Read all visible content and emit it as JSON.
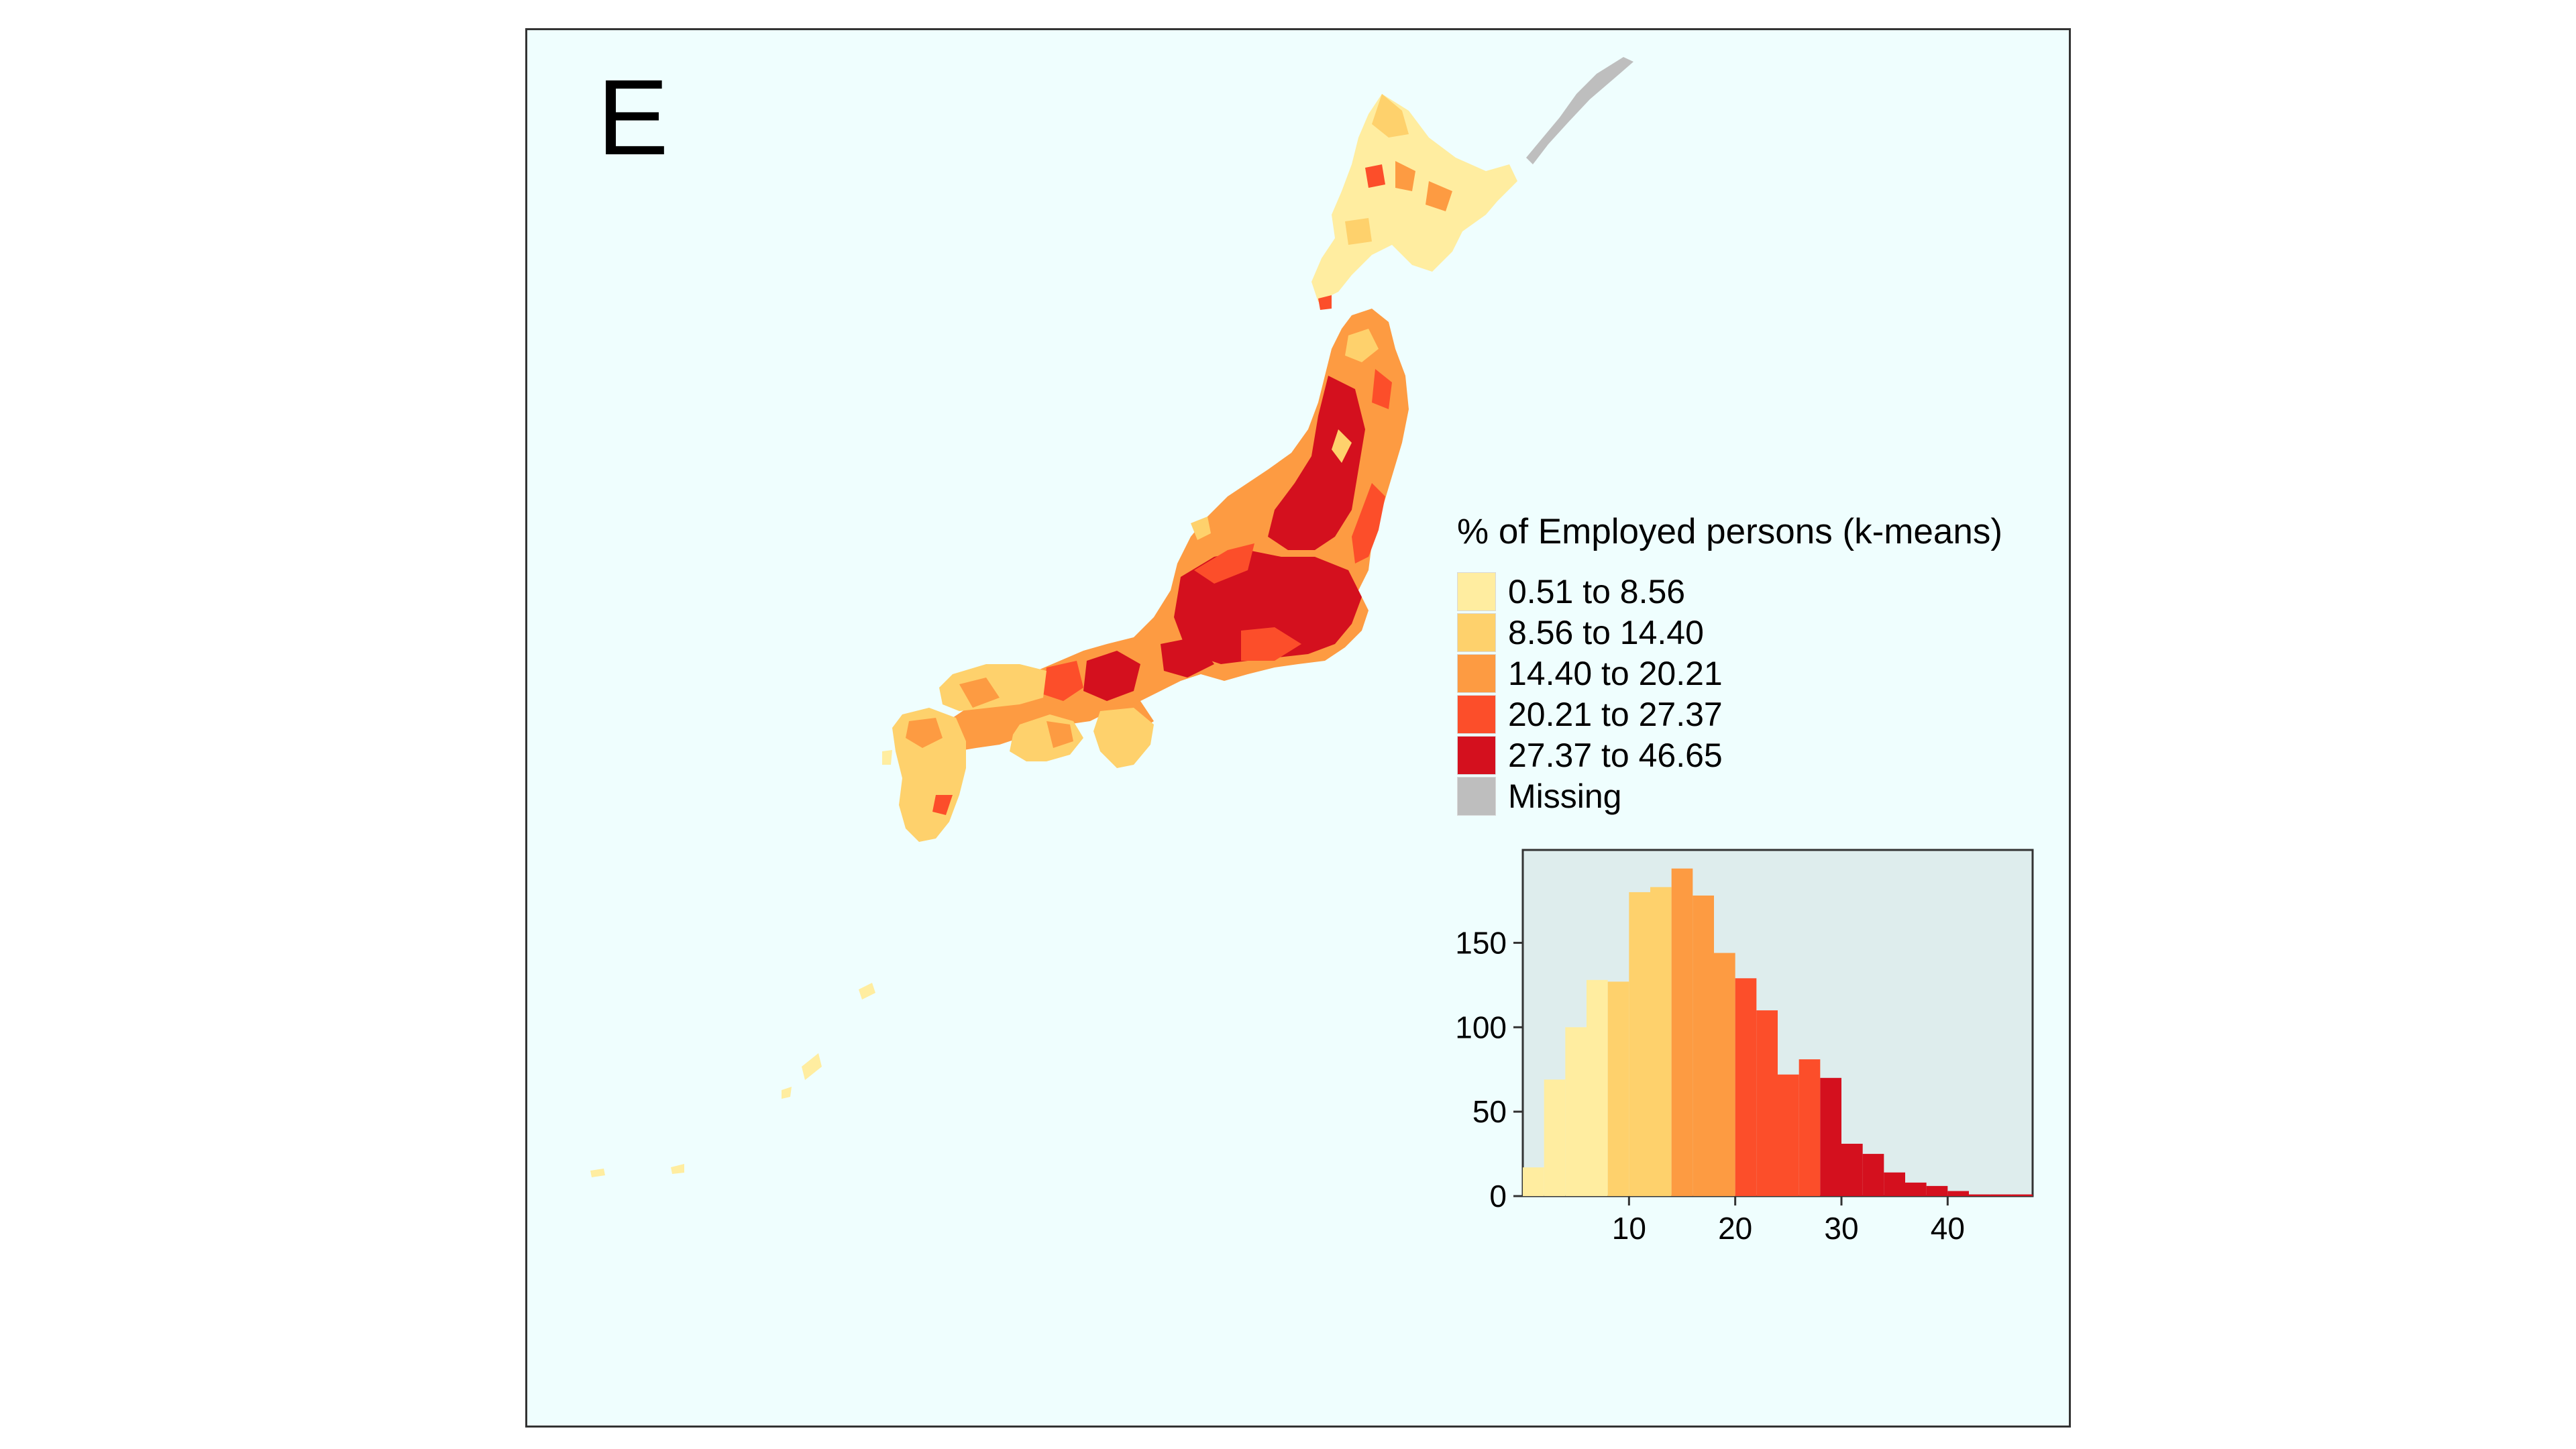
{
  "panel_label": "E",
  "legend": {
    "title": "% of Employed persons (k-means)",
    "items": [
      {
        "label": "0.51 to 8.56",
        "color": "#ffeda0"
      },
      {
        "label": "8.56 to 14.40",
        "color": "#fed16c"
      },
      {
        "label": "14.40 to 20.21",
        "color": "#fd9b42"
      },
      {
        "label": "20.21 to 27.37",
        "color": "#fc4e2a"
      },
      {
        "label": "27.37 to 46.65",
        "color": "#d4101e"
      },
      {
        "label": "Missing",
        "color": "#bebebe"
      }
    ]
  },
  "colors": {
    "map_background": "#effefe",
    "histogram_background": "#deeded"
  },
  "chart_data": {
    "type": "bar",
    "bin_width": 2,
    "bins_start": [
      0,
      2,
      4,
      6,
      8,
      10,
      12,
      14,
      16,
      18,
      20,
      22,
      24,
      26,
      28,
      30,
      32,
      34,
      36,
      38,
      40,
      42,
      44,
      46
    ],
    "values": [
      17,
      69,
      100,
      128,
      127,
      180,
      183,
      194,
      178,
      144,
      129,
      110,
      72,
      81,
      70,
      31,
      25,
      14,
      8,
      6,
      3,
      1,
      1,
      1
    ],
    "bin_class": [
      0,
      0,
      0,
      0,
      1,
      1,
      1,
      2,
      2,
      2,
      3,
      3,
      3,
      3,
      4,
      4,
      4,
      4,
      4,
      4,
      4,
      4,
      4,
      4
    ],
    "xlim": [
      0,
      48
    ],
    "ylim": [
      0,
      205
    ],
    "x_ticks": [
      10,
      20,
      30,
      40
    ],
    "y_ticks": [
      0,
      50,
      100,
      150
    ],
    "grid": false
  }
}
